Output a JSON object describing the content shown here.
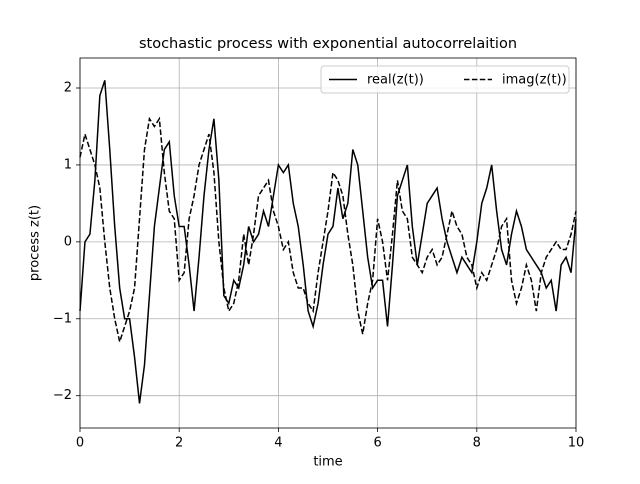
{
  "chart_data": {
    "type": "line",
    "title": "stochastic process with exponential autocorrelaition",
    "x_label": "time",
    "y_label": "process z(t)",
    "x": [
      0,
      0.1,
      0.2,
      0.3,
      0.4,
      0.5,
      0.6,
      0.7,
      0.8,
      0.9,
      1,
      1.1,
      1.2,
      1.3,
      1.4,
      1.5,
      1.6,
      1.7,
      1.8,
      1.9,
      2,
      2.1,
      2.2,
      2.3,
      2.4,
      2.5,
      2.6,
      2.7,
      2.8,
      2.9,
      3,
      3.1,
      3.2,
      3.3,
      3.4,
      3.5,
      3.6,
      3.7,
      3.8,
      3.9,
      4,
      4.1,
      4.2,
      4.3,
      4.4,
      4.5,
      4.6,
      4.7,
      4.8,
      4.9,
      5,
      5.1,
      5.2,
      5.3,
      5.4,
      5.5,
      5.6,
      5.7,
      5.8,
      5.9,
      6,
      6.1,
      6.2,
      6.3,
      6.4,
      6.5,
      6.6,
      6.7,
      6.8,
      6.9,
      7,
      7.1,
      7.2,
      7.3,
      7.4,
      7.5,
      7.6,
      7.7,
      7.8,
      7.9,
      8,
      8.1,
      8.2,
      8.3,
      8.4,
      8.5,
      8.6,
      8.7,
      8.8,
      8.9,
      9,
      9.1,
      9.2,
      9.3,
      9.4,
      9.5,
      9.6,
      9.7,
      9.8,
      9.9,
      10
    ],
    "series": [
      {
        "name": "real(z(t))",
        "color": "#000000",
        "linestyle": "solid",
        "values": [
          -0.9,
          0.0,
          0.1,
          0.8,
          1.9,
          2.1,
          1.2,
          0.2,
          -0.6,
          -1.0,
          -1.0,
          -1.5,
          -2.1,
          -1.6,
          -0.7,
          0.2,
          0.7,
          1.2,
          1.3,
          0.6,
          0.2,
          0.2,
          -0.3,
          -0.9,
          -0.2,
          0.6,
          1.2,
          1.6,
          0.8,
          -0.7,
          -0.8,
          -0.5,
          -0.6,
          -0.3,
          0.2,
          0.0,
          0.1,
          0.4,
          0.2,
          0.6,
          1.0,
          0.9,
          1.0,
          0.5,
          0.2,
          -0.3,
          -0.9,
          -1.1,
          -0.8,
          -0.3,
          0.1,
          0.2,
          0.7,
          0.3,
          0.5,
          1.2,
          1.0,
          0.4,
          -0.2,
          -0.6,
          -0.5,
          -0.5,
          -1.1,
          -0.3,
          0.6,
          0.8,
          1.0,
          0.2,
          -0.3,
          0.1,
          0.5,
          0.6,
          0.7,
          0.3,
          0.0,
          -0.2,
          -0.4,
          -0.2,
          -0.3,
          -0.4,
          0.0,
          0.5,
          0.7,
          1.0,
          0.4,
          -0.1,
          -0.3,
          0.1,
          0.4,
          0.2,
          -0.1,
          -0.2,
          -0.3,
          -0.4,
          -0.6,
          -0.5,
          -0.9,
          -0.3,
          -0.2,
          -0.4,
          0.3
        ]
      },
      {
        "name": "imag(z(t))",
        "color": "#000000",
        "linestyle": "dashed",
        "values": [
          1.1,
          1.4,
          1.2,
          1.0,
          0.7,
          0.0,
          -0.6,
          -1.0,
          -1.3,
          -1.1,
          -0.9,
          -0.6,
          0.3,
          1.2,
          1.6,
          1.5,
          1.6,
          0.9,
          0.4,
          0.3,
          -0.5,
          -0.4,
          0.3,
          0.6,
          1.0,
          1.2,
          1.4,
          0.9,
          0.0,
          -0.6,
          -0.9,
          -0.8,
          -0.5,
          0.1,
          -0.3,
          0.1,
          0.6,
          0.7,
          0.8,
          0.4,
          0.2,
          -0.1,
          0.0,
          -0.4,
          -0.6,
          -0.6,
          -0.8,
          -0.9,
          -0.4,
          0.0,
          0.4,
          0.9,
          0.8,
          0.6,
          0.1,
          -0.3,
          -0.9,
          -1.2,
          -0.8,
          -0.5,
          0.3,
          0.0,
          -0.5,
          0.1,
          0.8,
          0.4,
          0.3,
          -0.2,
          -0.3,
          -0.4,
          -0.2,
          -0.1,
          -0.3,
          -0.2,
          0.1,
          0.4,
          0.2,
          0.1,
          -0.2,
          -0.3,
          -0.6,
          -0.4,
          -0.5,
          -0.3,
          -0.1,
          0.2,
          0.3,
          -0.5,
          -0.8,
          -0.6,
          -0.3,
          -0.5,
          -0.9,
          -0.4,
          -0.2,
          -0.1,
          0.0,
          -0.1,
          -0.1,
          0.1,
          0.4
        ]
      }
    ],
    "xlim": [
      0,
      10
    ],
    "ylim": [
      -2.42,
      2.39
    ],
    "xticks": [
      0,
      2,
      4,
      6,
      8,
      10
    ],
    "yticks": [
      {
        "value": -2,
        "label": "−2"
      },
      {
        "value": -1,
        "label": "−1"
      },
      0,
      1,
      2
    ],
    "grid": true,
    "legend": "upper right",
    "legend_columns": 2
  }
}
